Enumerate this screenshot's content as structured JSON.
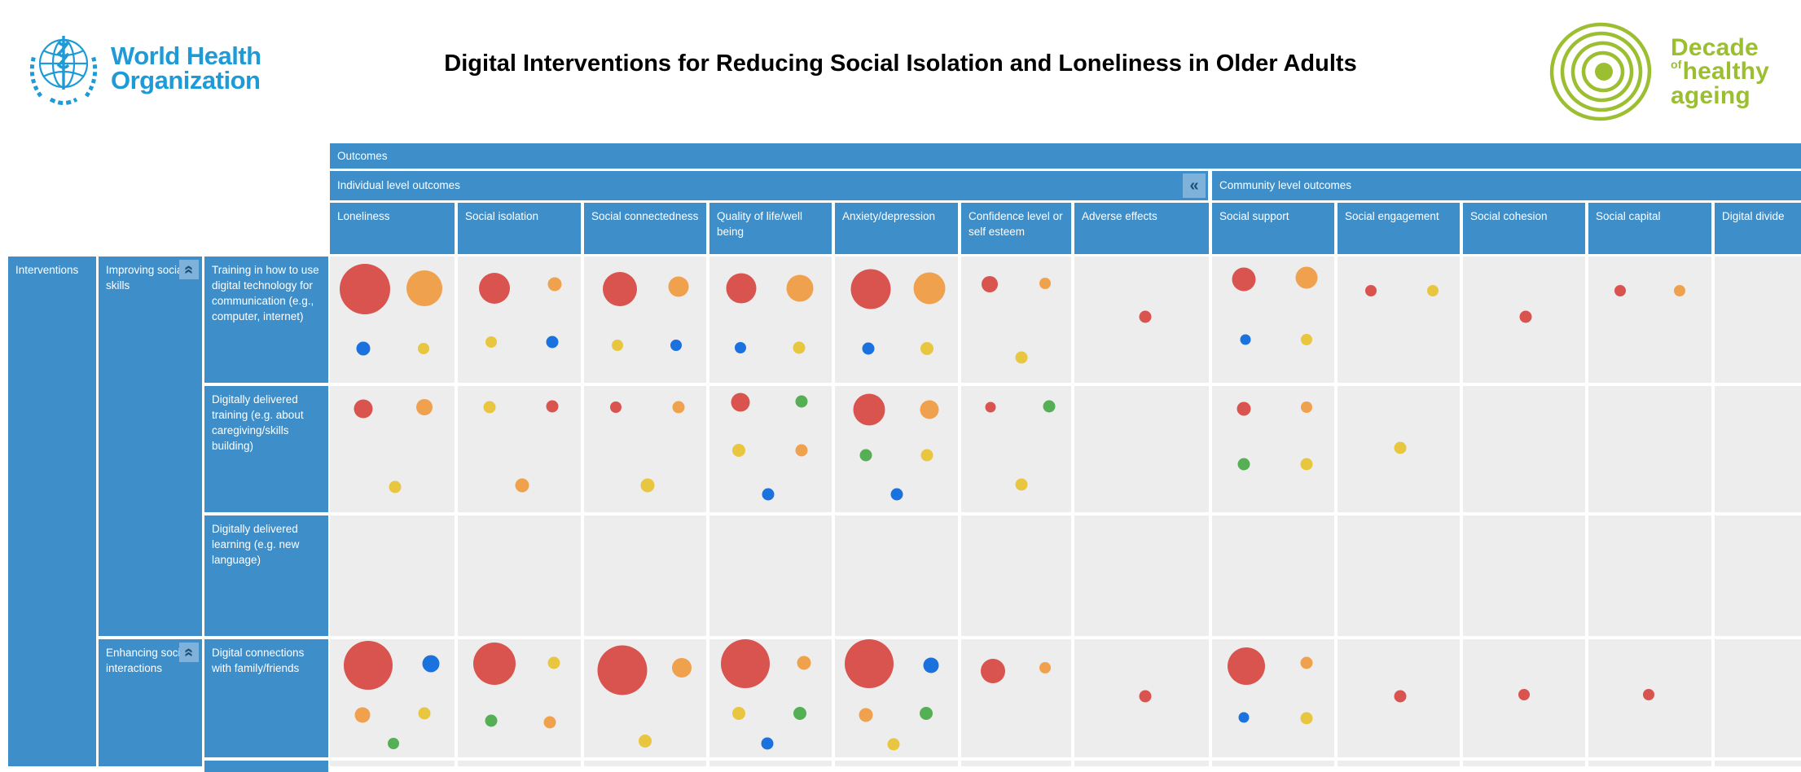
{
  "header": {
    "who_logo": {
      "line1": "World Health",
      "line2": "Organization"
    },
    "title": "Digital Interventions for Reducing Social Isolation and Loneliness in Older Adults",
    "decade_logo": {
      "word1": "Decade",
      "word2_small": "of",
      "word2": "healthy",
      "word3": "ageing"
    }
  },
  "colors": {
    "header_blue": "#3D8EC9",
    "button_light_blue": "#7FB2DB",
    "chevron_dark": "#1D4E74",
    "cell_gray": "#EDEDED",
    "who_blue": "#1E9BD7",
    "decade_green": "#9CBE31",
    "bubbles": {
      "red": "#D9534F",
      "orange": "#F0A14D",
      "yellow": "#E8C63F",
      "blue": "#1B72DE",
      "green": "#55AF55"
    }
  },
  "matrix": {
    "outcomes_label": "Outcomes",
    "collapse_columns_glyph": "«",
    "collapse_row_glyph": "«",
    "groups": [
      {
        "label": "Individual level outcomes"
      },
      {
        "label": "Community level outcomes"
      }
    ],
    "columns": [
      "Loneliness",
      "Social isolation",
      "Social connectedness",
      "Quality of life/well being",
      "Anxiety/depression",
      "Confidence level or self esteem",
      "Adverse effects",
      "Social support",
      "Social engagement",
      "Social cohesion",
      "Social capital",
      "Digital divide"
    ],
    "interventions_label": "Interventions",
    "categories": [
      {
        "label": "Improving social skills"
      },
      {
        "label": "Enhancing social interactions"
      }
    ],
    "rows": [
      {
        "category": 0,
        "label": "Training in how to use digital technology for communication (e.g., computer, internet)",
        "cells": [
          [
            {
              "c": "red",
              "r": 31,
              "x": 0.28,
              "y": 0.26
            },
            {
              "c": "orange",
              "r": 22,
              "x": 0.76,
              "y": 0.25
            },
            {
              "c": "blue",
              "r": 8.5,
              "x": 0.27,
              "y": 0.73
            },
            {
              "c": "yellow",
              "r": 7,
              "x": 0.75,
              "y": 0.73
            }
          ],
          [
            {
              "c": "red",
              "r": 19,
              "x": 0.3,
              "y": 0.25
            },
            {
              "c": "orange",
              "r": 8.5,
              "x": 0.79,
              "y": 0.22
            },
            {
              "c": "yellow",
              "r": 7,
              "x": 0.27,
              "y": 0.68
            },
            {
              "c": "blue",
              "r": 7.5,
              "x": 0.77,
              "y": 0.68
            }
          ],
          [
            {
              "c": "red",
              "r": 21,
              "x": 0.29,
              "y": 0.26
            },
            {
              "c": "orange",
              "r": 12.5,
              "x": 0.77,
              "y": 0.24
            },
            {
              "c": "yellow",
              "r": 7,
              "x": 0.27,
              "y": 0.7
            },
            {
              "c": "blue",
              "r": 7,
              "x": 0.75,
              "y": 0.7
            }
          ],
          [
            {
              "c": "red",
              "r": 18.5,
              "x": 0.26,
              "y": 0.25
            },
            {
              "c": "orange",
              "r": 16.5,
              "x": 0.74,
              "y": 0.25
            },
            {
              "c": "blue",
              "r": 7,
              "x": 0.25,
              "y": 0.72
            },
            {
              "c": "yellow",
              "r": 7.5,
              "x": 0.73,
              "y": 0.72
            }
          ],
          [
            {
              "c": "red",
              "r": 24.5,
              "x": 0.29,
              "y": 0.26
            },
            {
              "c": "orange",
              "r": 19.5,
              "x": 0.77,
              "y": 0.25
            },
            {
              "c": "blue",
              "r": 7.5,
              "x": 0.27,
              "y": 0.73
            },
            {
              "c": "yellow",
              "r": 8,
              "x": 0.75,
              "y": 0.73
            }
          ],
          [
            {
              "c": "red",
              "r": 10,
              "x": 0.26,
              "y": 0.22
            },
            {
              "c": "orange",
              "r": 7,
              "x": 0.76,
              "y": 0.21
            },
            {
              "c": "yellow",
              "r": 7.5,
              "x": 0.55,
              "y": 0.8
            }
          ],
          [
            {
              "c": "red",
              "r": 7.5,
              "x": 0.53,
              "y": 0.48
            }
          ],
          [
            {
              "c": "red",
              "r": 14.5,
              "x": 0.26,
              "y": 0.18
            },
            {
              "c": "orange",
              "r": 13.5,
              "x": 0.77,
              "y": 0.17
            },
            {
              "c": "blue",
              "r": 6.5,
              "x": 0.27,
              "y": 0.66
            },
            {
              "c": "yellow",
              "r": 7,
              "x": 0.77,
              "y": 0.66
            }
          ],
          [
            {
              "c": "red",
              "r": 7,
              "x": 0.27,
              "y": 0.27
            },
            {
              "c": "yellow",
              "r": 7,
              "x": 0.78,
              "y": 0.27
            }
          ],
          [
            {
              "c": "red",
              "r": 7.5,
              "x": 0.51,
              "y": 0.48
            }
          ],
          [
            {
              "c": "red",
              "r": 7,
              "x": 0.26,
              "y": 0.27
            },
            {
              "c": "orange",
              "r": 7,
              "x": 0.74,
              "y": 0.27
            }
          ],
          []
        ]
      },
      {
        "category": 0,
        "label": "Digitally delivered training (e.g. about caregiving/skills building)",
        "cells": [
          [
            {
              "c": "red",
              "r": 11.5,
              "x": 0.27,
              "y": 0.18
            },
            {
              "c": "orange",
              "r": 10,
              "x": 0.76,
              "y": 0.17
            },
            {
              "c": "yellow",
              "r": 7.5,
              "x": 0.52,
              "y": 0.8
            }
          ],
          [
            {
              "c": "yellow",
              "r": 7.5,
              "x": 0.26,
              "y": 0.17
            },
            {
              "c": "red",
              "r": 7.5,
              "x": 0.77,
              "y": 0.16
            },
            {
              "c": "orange",
              "r": 8.5,
              "x": 0.52,
              "y": 0.79
            }
          ],
          [
            {
              "c": "red",
              "r": 7,
              "x": 0.26,
              "y": 0.17
            },
            {
              "c": "orange",
              "r": 7.5,
              "x": 0.77,
              "y": 0.17
            },
            {
              "c": "yellow",
              "r": 8.5,
              "x": 0.52,
              "y": 0.79
            }
          ],
          [
            {
              "c": "red",
              "r": 11.5,
              "x": 0.25,
              "y": 0.13
            },
            {
              "c": "green",
              "r": 7.5,
              "x": 0.75,
              "y": 0.12
            },
            {
              "c": "yellow",
              "r": 8,
              "x": 0.24,
              "y": 0.51
            },
            {
              "c": "orange",
              "r": 7.5,
              "x": 0.75,
              "y": 0.51
            },
            {
              "c": "blue",
              "r": 7.5,
              "x": 0.48,
              "y": 0.86
            }
          ],
          [
            {
              "c": "red",
              "r": 19.5,
              "x": 0.28,
              "y": 0.19
            },
            {
              "c": "orange",
              "r": 11.5,
              "x": 0.77,
              "y": 0.19
            },
            {
              "c": "green",
              "r": 7.5,
              "x": 0.25,
              "y": 0.55
            },
            {
              "c": "yellow",
              "r": 7.5,
              "x": 0.75,
              "y": 0.55
            },
            {
              "c": "blue",
              "r": 7.5,
              "x": 0.5,
              "y": 0.86
            }
          ],
          [
            {
              "c": "red",
              "r": 6.5,
              "x": 0.27,
              "y": 0.17
            },
            {
              "c": "green",
              "r": 7.5,
              "x": 0.8,
              "y": 0.16
            },
            {
              "c": "yellow",
              "r": 7.5,
              "x": 0.55,
              "y": 0.78
            }
          ],
          [],
          [
            {
              "c": "red",
              "r": 8.5,
              "x": 0.26,
              "y": 0.18
            },
            {
              "c": "orange",
              "r": 7,
              "x": 0.77,
              "y": 0.17
            },
            {
              "c": "green",
              "r": 7.5,
              "x": 0.26,
              "y": 0.62
            },
            {
              "c": "yellow",
              "r": 7.5,
              "x": 0.77,
              "y": 0.62
            }
          ],
          [
            {
              "c": "yellow",
              "r": 7.5,
              "x": 0.51,
              "y": 0.49
            }
          ],
          [],
          [],
          []
        ]
      },
      {
        "category": 0,
        "label": "Digitally delivered learning (e.g. new language)",
        "cells": [
          [],
          [],
          [],
          [],
          [],
          [],
          [],
          [],
          [],
          [],
          [],
          []
        ]
      },
      {
        "category": 1,
        "label": "Digital connections with family/friends",
        "cells": [
          [
            {
              "c": "red",
              "r": 30,
              "x": 0.31,
              "y": 0.22
            },
            {
              "c": "blue",
              "r": 10.5,
              "x": 0.81,
              "y": 0.21
            },
            {
              "c": "orange",
              "r": 9.5,
              "x": 0.26,
              "y": 0.64
            },
            {
              "c": "yellow",
              "r": 7.5,
              "x": 0.76,
              "y": 0.63
            },
            {
              "c": "green",
              "r": 7,
              "x": 0.51,
              "y": 0.88
            }
          ],
          [
            {
              "c": "red",
              "r": 26,
              "x": 0.3,
              "y": 0.21
            },
            {
              "c": "yellow",
              "r": 7.5,
              "x": 0.78,
              "y": 0.2
            },
            {
              "c": "green",
              "r": 7.5,
              "x": 0.27,
              "y": 0.69
            },
            {
              "c": "orange",
              "r": 7.5,
              "x": 0.75,
              "y": 0.7
            }
          ],
          [
            {
              "c": "red",
              "r": 30.5,
              "x": 0.31,
              "y": 0.26
            },
            {
              "c": "orange",
              "r": 12,
              "x": 0.8,
              "y": 0.24
            },
            {
              "c": "yellow",
              "r": 8,
              "x": 0.5,
              "y": 0.86
            }
          ],
          [
            {
              "c": "red",
              "r": 30,
              "x": 0.29,
              "y": 0.21
            },
            {
              "c": "orange",
              "r": 8.5,
              "x": 0.77,
              "y": 0.2
            },
            {
              "c": "yellow",
              "r": 8,
              "x": 0.24,
              "y": 0.63
            },
            {
              "c": "green",
              "r": 8,
              "x": 0.74,
              "y": 0.63
            },
            {
              "c": "blue",
              "r": 7.5,
              "x": 0.47,
              "y": 0.88
            }
          ],
          [
            {
              "c": "red",
              "r": 30,
              "x": 0.28,
              "y": 0.21
            },
            {
              "c": "blue",
              "r": 9.5,
              "x": 0.78,
              "y": 0.22
            },
            {
              "c": "orange",
              "r": 8.5,
              "x": 0.25,
              "y": 0.64
            },
            {
              "c": "green",
              "r": 8,
              "x": 0.74,
              "y": 0.63
            },
            {
              "c": "yellow",
              "r": 7.5,
              "x": 0.48,
              "y": 0.89
            }
          ],
          [
            {
              "c": "red",
              "r": 15,
              "x": 0.29,
              "y": 0.27
            },
            {
              "c": "orange",
              "r": 7,
              "x": 0.76,
              "y": 0.24
            }
          ],
          [
            {
              "c": "red",
              "r": 7.5,
              "x": 0.53,
              "y": 0.48
            }
          ],
          [
            {
              "c": "red",
              "r": 23,
              "x": 0.28,
              "y": 0.23
            },
            {
              "c": "orange",
              "r": 7.5,
              "x": 0.77,
              "y": 0.2
            },
            {
              "c": "blue",
              "r": 6.5,
              "x": 0.26,
              "y": 0.66
            },
            {
              "c": "yellow",
              "r": 7.5,
              "x": 0.77,
              "y": 0.67
            }
          ],
          [
            {
              "c": "red",
              "r": 7.5,
              "x": 0.51,
              "y": 0.48
            }
          ],
          [
            {
              "c": "red",
              "r": 7,
              "x": 0.5,
              "y": 0.47
            }
          ],
          [
            {
              "c": "red",
              "r": 7,
              "x": 0.49,
              "y": 0.47
            }
          ],
          []
        ]
      },
      {
        "category": 1,
        "label": "",
        "cells": [
          [],
          [],
          [],
          [],
          [],
          [],
          [],
          [],
          [],
          [],
          [],
          []
        ]
      }
    ]
  }
}
